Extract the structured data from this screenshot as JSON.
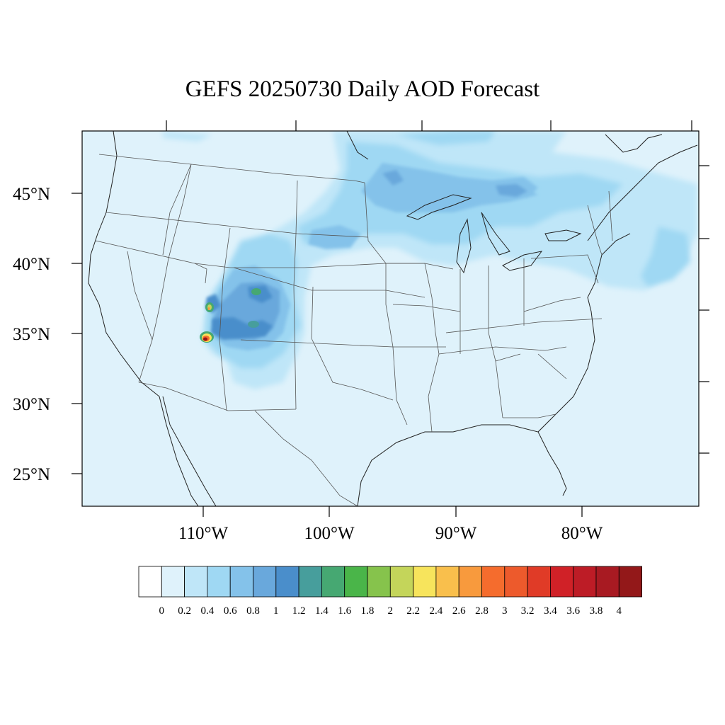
{
  "title": "GEFS 20250730 Daily AOD Forecast",
  "map": {
    "lat_labels": [
      "45°N",
      "40°N",
      "35°N",
      "30°N",
      "25°N"
    ],
    "lon_labels": [
      "110°W",
      "100°W",
      "90°W",
      "80°W"
    ],
    "background_color": "#dff2fb",
    "land_line_color": "#444444"
  },
  "colorbar": {
    "labels": [
      "0",
      "0.2",
      "0.4",
      "0.6",
      "0.8",
      "1",
      "1.2",
      "1.4",
      "1.6",
      "1.8",
      "2",
      "2.2",
      "2.4",
      "2.6",
      "2.8",
      "3",
      "3.2",
      "3.4",
      "3.6",
      "3.8",
      "4"
    ],
    "colors": [
      "#ffffff",
      "#dff2fb",
      "#bfe6f8",
      "#9fd8f3",
      "#84c2ea",
      "#69a8dc",
      "#4a8ecb",
      "#479e9c",
      "#46a872",
      "#4ab549",
      "#86c34c",
      "#c4d55a",
      "#f7e45c",
      "#f9bf4c",
      "#f89a3d",
      "#f56c2d",
      "#ed5a2c",
      "#e03b27",
      "#d02127",
      "#bd1c26",
      "#a81a22",
      "#931819"
    ]
  }
}
